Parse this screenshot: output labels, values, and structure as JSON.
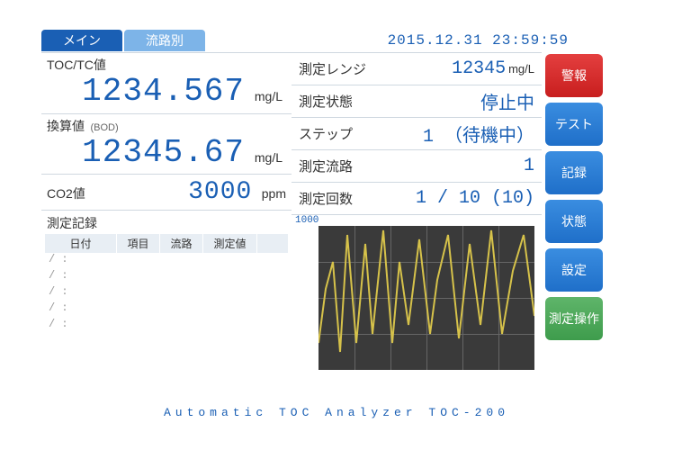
{
  "tabs": {
    "main": "メイン",
    "sub": "流路別"
  },
  "clock": "2015.12.31 23:59:59",
  "left": {
    "toc": {
      "label": "TOC/TC値",
      "value": "1234.567",
      "unit": "mg/L"
    },
    "conv": {
      "label": "換算値",
      "sublabel": "(BOD)",
      "value": "12345.67",
      "unit": "mg/L"
    },
    "co2": {
      "label": "CO2値",
      "value": "3000",
      "unit": "ppm"
    }
  },
  "log": {
    "title": "測定記録",
    "headers": [
      "日付",
      "項目",
      "流路",
      "測定値"
    ],
    "placeholder_date": "/",
    "placeholder_time": ":"
  },
  "mid": [
    {
      "label": "測定レンジ",
      "value": "12345",
      "unit": "mg/L"
    },
    {
      "label": "測定状態",
      "value": "停止中",
      "unit": ""
    },
    {
      "label": "ステップ",
      "value": "1  （待機中）",
      "unit": ""
    },
    {
      "label": "測定流路",
      "value": "1",
      "unit": ""
    },
    {
      "label": "測定回数",
      "value": "1 / 10 (10)",
      "unit": ""
    }
  ],
  "chart": {
    "ymax": "1000",
    "background": "#3a3a3a",
    "grid_color": "#666666",
    "line_color": "#d6c24a",
    "line_width": 2,
    "points": [
      [
        0,
        30
      ],
      [
        8,
        90
      ],
      [
        16,
        120
      ],
      [
        24,
        20
      ],
      [
        32,
        150
      ],
      [
        42,
        30
      ],
      [
        52,
        140
      ],
      [
        60,
        40
      ],
      [
        72,
        155
      ],
      [
        82,
        30
      ],
      [
        90,
        120
      ],
      [
        100,
        50
      ],
      [
        112,
        145
      ],
      [
        124,
        40
      ],
      [
        132,
        100
      ],
      [
        144,
        150
      ],
      [
        156,
        35
      ],
      [
        168,
        140
      ],
      [
        180,
        50
      ],
      [
        192,
        155
      ],
      [
        204,
        40
      ],
      [
        216,
        110
      ],
      [
        228,
        150
      ],
      [
        240,
        60
      ]
    ]
  },
  "buttons": [
    {
      "name": "alarm-button",
      "label": "警報",
      "color": "red"
    },
    {
      "name": "test-button",
      "label": "テスト",
      "color": "blue"
    },
    {
      "name": "record-button",
      "label": "記録",
      "color": "blue"
    },
    {
      "name": "status-button",
      "label": "状態",
      "color": "blue"
    },
    {
      "name": "settings-button",
      "label": "設定",
      "color": "blue"
    },
    {
      "name": "measure-button",
      "label": "測定操作",
      "color": "green"
    }
  ],
  "footer": "Automatic TOC Analyzer TOC-200"
}
